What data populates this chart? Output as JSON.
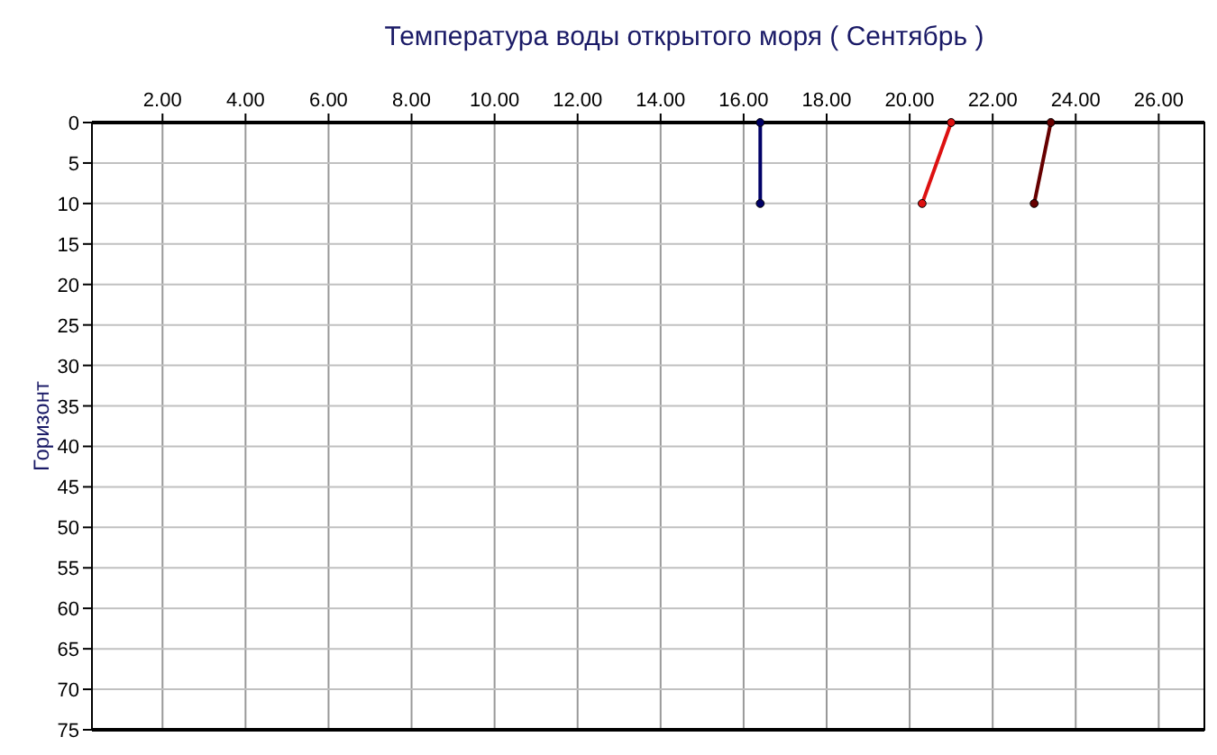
{
  "chart_data": {
    "type": "line",
    "title": "Температура воды открытого моря     ( Сентябрь )",
    "ylabel": "Горизонт",
    "xlim": [
      0.3,
      27.1
    ],
    "xticks": [
      {
        "value": 2,
        "label": "2.00"
      },
      {
        "value": 4,
        "label": "4.00"
      },
      {
        "value": 6,
        "label": "6.00"
      },
      {
        "value": 8,
        "label": "8.00"
      },
      {
        "value": 10,
        "label": "10.00"
      },
      {
        "value": 12,
        "label": "12.00"
      },
      {
        "value": 14,
        "label": "14.00"
      },
      {
        "value": 16,
        "label": "16.00"
      },
      {
        "value": 18,
        "label": "18.00"
      },
      {
        "value": 20,
        "label": "20.00"
      },
      {
        "value": 22,
        "label": "22.00"
      },
      {
        "value": 24,
        "label": "24.00"
      },
      {
        "value": 26,
        "label": "26.00"
      }
    ],
    "ylim": [
      75,
      0
    ],
    "yticks": [
      0,
      5,
      10,
      15,
      20,
      25,
      30,
      35,
      40,
      45,
      50,
      55,
      60,
      65,
      70,
      75
    ],
    "grid": true,
    "marker": "circle",
    "line_style": "solid",
    "series": [
      {
        "color": "#000066",
        "x": [
          16.4,
          16.4
        ],
        "values": [
          0,
          10
        ]
      },
      {
        "color": "#dd1111",
        "x": [
          21.0,
          20.3
        ],
        "values": [
          0,
          10
        ]
      },
      {
        "color": "#660000",
        "x": [
          23.4,
          23.0
        ],
        "values": [
          0,
          10
        ]
      }
    ]
  }
}
